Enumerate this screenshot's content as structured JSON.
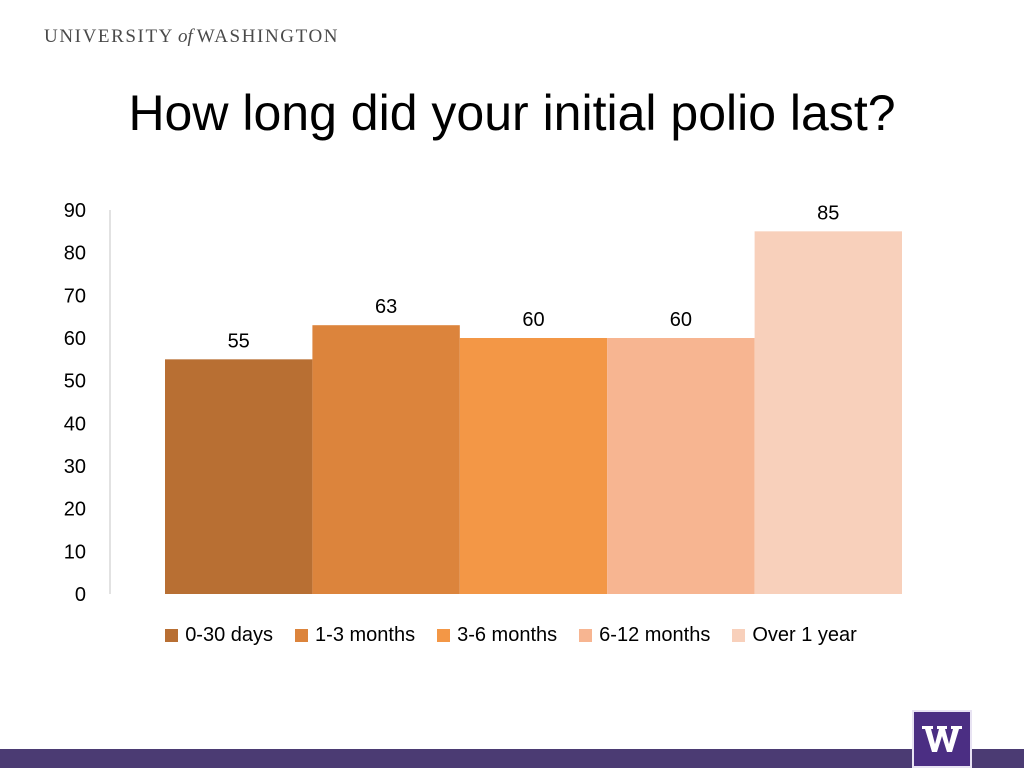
{
  "header": {
    "university": "UNIVERSITY",
    "of": "of",
    "place": "WASHINGTON"
  },
  "slide": {
    "title": "How long did your initial polio last?"
  },
  "colors": {
    "footer_bar": "#4b3b73",
    "logo_bg": "#4b2e83",
    "series": [
      "#b86f33",
      "#dc843c",
      "#f39746",
      "#f7b591",
      "#f8d0bb"
    ]
  },
  "logo": {
    "icon": "w-logo-icon"
  },
  "chart_data": {
    "type": "bar",
    "title": "",
    "xlabel": "",
    "ylabel": "",
    "ylim": [
      0,
      90
    ],
    "yticks": [
      0,
      10,
      20,
      30,
      40,
      50,
      60,
      70,
      80,
      90
    ],
    "grid": false,
    "legend_position": "bottom",
    "series": [
      {
        "name": "0-30 days",
        "values": [
          55
        ]
      },
      {
        "name": "1-3 months",
        "values": [
          63
        ]
      },
      {
        "name": "3-6 months",
        "values": [
          60
        ]
      },
      {
        "name": "6-12 months",
        "values": [
          60
        ]
      },
      {
        "name": "Over 1 year",
        "values": [
          85
        ]
      }
    ]
  }
}
